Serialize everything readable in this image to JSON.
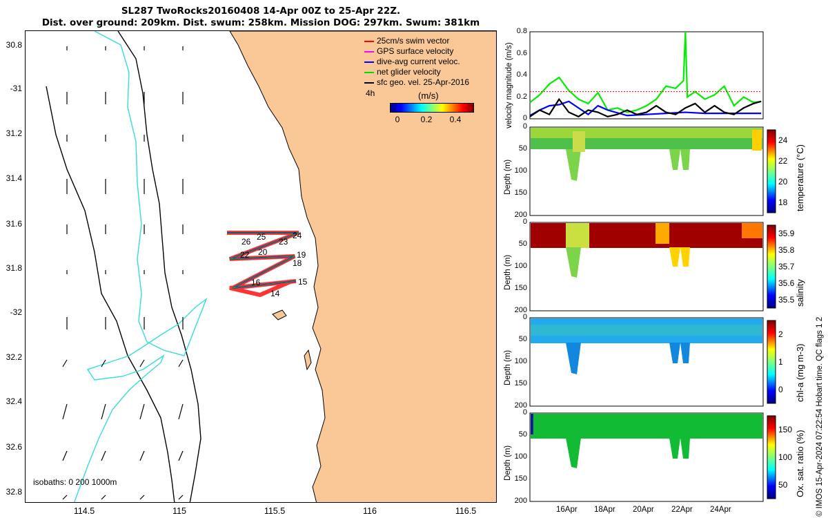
{
  "title": {
    "line1": "SL287 TwoRocks20160408 14-Apr 00Z to 25-Apr 22Z.",
    "line2": "Dist. over ground: 209km. Dist. swum: 258km. Mission DOG: 297km. Swum: 381km"
  },
  "map": {
    "lat_ticks": [
      "30.8",
      "-31",
      "31.2",
      "31.4",
      "31.6",
      "31.8",
      "-32",
      "32.2",
      "32.4",
      "32.6",
      "32.8"
    ],
    "lon_ticks": [
      "114.5",
      "115",
      "115.5",
      "116",
      "116.5"
    ],
    "legend": [
      {
        "label": "25cm/s swim vector",
        "color": "#ff0000"
      },
      {
        "label": "GPS surface velocity",
        "color": "#ff00ff"
      },
      {
        "label": "dive-avg current veloc.",
        "color": "#0000ff"
      },
      {
        "label": "net glider velocity",
        "color": "#00dd00"
      },
      {
        "label": "sfc geo. vel. 25-Apr-2016",
        "color": "#000000"
      }
    ],
    "legend_note": "4h",
    "colorbar_title": "(m/s)",
    "colorbar_ticks": [
      "0",
      "0.2",
      "0.4"
    ],
    "day_labels": [
      "26",
      "25",
      "24",
      "23",
      "22",
      "20",
      "19",
      "18",
      "16",
      "15",
      "14"
    ],
    "isobaths": "isobaths: 0   200  1000m",
    "colors": {
      "land": "#f9c896",
      "coast": "#000000",
      "isobath_200": "#000000",
      "isobath_1000": "#33dddd"
    }
  },
  "chart_data": [
    {
      "type": "line",
      "title": "",
      "ylabel": "velocity magnitude (m/s)",
      "ylim": [
        0,
        0.8
      ],
      "yticks": [
        "0",
        "0.2",
        "0.4",
        "0.6",
        "0.8"
      ],
      "series": [
        {
          "name": "net glider velocity",
          "color": "#00ee00",
          "x": [
            14,
            14.5,
            15,
            15.5,
            16,
            16.5,
            17,
            17.5,
            18,
            18.5,
            19,
            19.5,
            20,
            20.5,
            21,
            21.5,
            21.9,
            22,
            22.1,
            22.5,
            23,
            23.5,
            24,
            24.5,
            25,
            25.5,
            25.9
          ],
          "values": [
            0.15,
            0.22,
            0.32,
            0.38,
            0.26,
            0.18,
            0.14,
            0.24,
            0.08,
            0.1,
            0.06,
            0.08,
            0.12,
            0.18,
            0.3,
            0.28,
            0.35,
            0.8,
            0.2,
            0.25,
            0.18,
            0.22,
            0.3,
            0.12,
            0.2,
            0.15,
            0.16
          ]
        },
        {
          "name": "dive-avg current veloc.",
          "color": "#0000ff",
          "x": [
            14,
            14.5,
            15,
            15.5,
            16,
            16.5,
            17,
            17.5,
            18,
            19,
            20,
            21,
            22,
            23,
            24,
            25,
            25.9
          ],
          "values": [
            0.03,
            0.08,
            0.12,
            0.13,
            0.16,
            0.1,
            0.04,
            0.12,
            0.08,
            0.03,
            0.04,
            0.05,
            0.06,
            0.05,
            0.05,
            0.05,
            0.05
          ]
        },
        {
          "name": "sfc geo. vel.",
          "color": "#000000",
          "x": [
            14,
            14.5,
            15,
            15.5,
            16,
            16.5,
            17,
            17.5,
            18,
            18.5,
            19,
            19.5,
            20,
            20.5,
            21,
            21.5,
            22,
            22.5,
            23,
            23.5,
            24,
            24.5,
            25,
            25.5,
            25.9
          ],
          "values": [
            0.02,
            0.08,
            0.04,
            0.18,
            0.06,
            0.02,
            0.08,
            0.06,
            0.02,
            0.04,
            0.08,
            0.04,
            0.06,
            0.12,
            0.06,
            0.04,
            0.1,
            0.14,
            0.06,
            0.12,
            0.06,
            0.04,
            0.1,
            0.14,
            0.16
          ]
        },
        {
          "name": "25cm/s swim vector",
          "color": "#ff0000",
          "x": [
            14,
            25.9
          ],
          "values": [
            0.25,
            0.25
          ]
        }
      ]
    },
    {
      "type": "heatmap",
      "title": "",
      "ylabel": "Depth (m)",
      "clabel": "temperature (°C)",
      "ylim": [
        0,
        200
      ],
      "yticks": [
        "0",
        "50",
        "100",
        "150",
        "200"
      ],
      "cticks": [
        "18",
        "20",
        "22",
        "24"
      ]
    },
    {
      "type": "heatmap",
      "title": "",
      "ylabel": "Depth (m)",
      "clabel": "salinity",
      "ylim": [
        0,
        200
      ],
      "yticks": [
        "0",
        "50",
        "100",
        "150",
        "200"
      ],
      "cticks": [
        "35.5",
        "35.6",
        "35.7",
        "35.8",
        "35.9"
      ]
    },
    {
      "type": "heatmap",
      "title": "",
      "ylabel": "Depth (m)",
      "clabel": "chl-a (mg m-3)",
      "ylim": [
        0,
        200
      ],
      "yticks": [
        "0",
        "50",
        "100",
        "150",
        "200"
      ],
      "cticks": [
        "0",
        "1",
        "2"
      ]
    },
    {
      "type": "heatmap",
      "title": "",
      "ylabel": "Depth (m)",
      "clabel": "Ox. sat. ratio (%)",
      "ylim": [
        0,
        200
      ],
      "yticks": [
        "0",
        "50",
        "100",
        "150",
        "200"
      ],
      "cticks": [
        "50",
        "100",
        "150"
      ],
      "xticks": [
        "16Apr",
        "18Apr",
        "20Apr",
        "22Apr",
        "24Apr"
      ]
    }
  ],
  "credit": "© IMOS 15-Apr-2024 07:22:54 Hobart time. QC flags 1  2"
}
